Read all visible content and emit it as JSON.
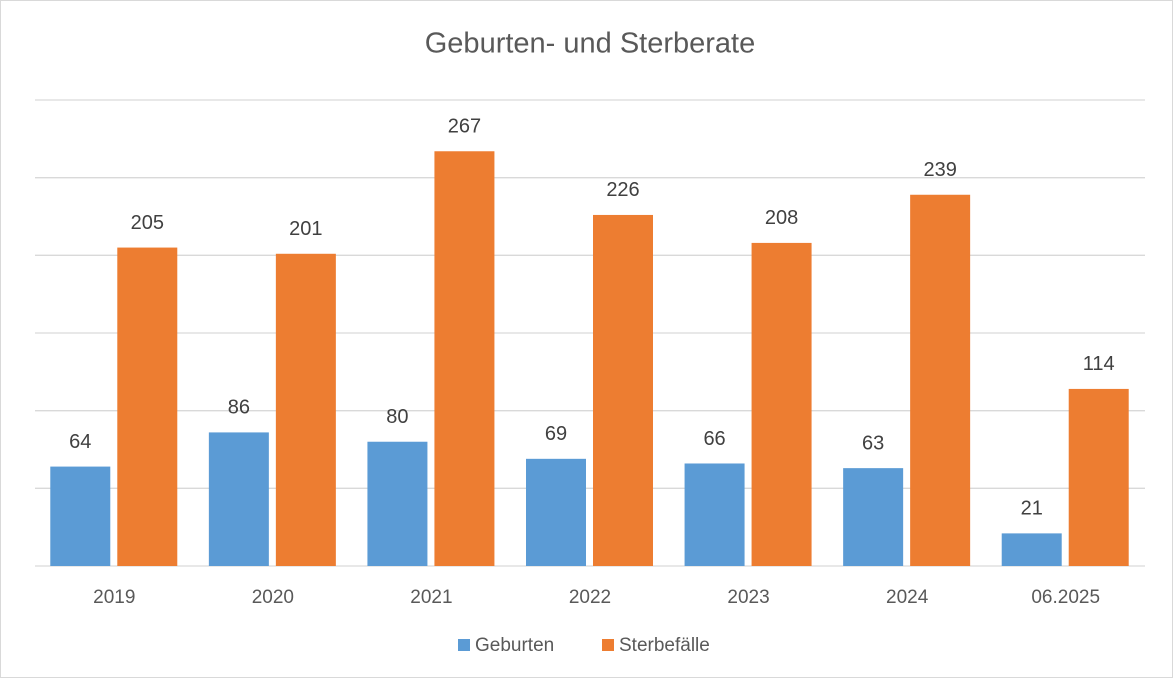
{
  "chart_data": {
    "type": "bar",
    "title": "Geburten- und Sterberate",
    "categories": [
      "2019",
      "2020",
      "2021",
      "2022",
      "2023",
      "2024",
      "06.2025"
    ],
    "series": [
      {
        "name": "Geburten",
        "color": "#5b9bd5",
        "values": [
          64,
          86,
          80,
          69,
          66,
          63,
          21
        ]
      },
      {
        "name": "Sterbefälle",
        "color": "#ed7d31",
        "values": [
          205,
          201,
          267,
          226,
          208,
          239,
          114
        ]
      }
    ],
    "ylim": [
      0,
      300
    ],
    "yticks": [
      0,
      50,
      100,
      150,
      200,
      250,
      300
    ],
    "grid": true,
    "legend": "bottom"
  }
}
